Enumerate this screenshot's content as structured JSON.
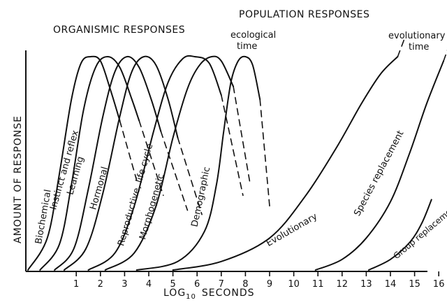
{
  "chart_data": {
    "type": "line",
    "xlabel": "LOG",
    "xlabel_sub": "10",
    "xlabel_tail": "SECONDS",
    "ylabel": "AMOUNT OF RESPONSE",
    "xlim": [
      -1,
      17
    ],
    "ylim": [
      0,
      1
    ],
    "tick_labels": [
      "1",
      "2",
      "3",
      "4",
      "5",
      "6",
      "7",
      "8",
      "9",
      "10",
      "11",
      "12",
      "13",
      "14",
      "15",
      "16"
    ],
    "tick_values": [
      1,
      2,
      3,
      4,
      5,
      6,
      7,
      8,
      9,
      10,
      11,
      12,
      13,
      14,
      15,
      16
    ],
    "grid": false,
    "header_labels": {
      "organismic": "ORGANISMIC RESPONSES",
      "population": "POPULATION RESPONSES"
    },
    "annotations": {
      "ecological_line1": "ecological",
      "ecological_line2": "time",
      "evolutionary_line1": "evolutionary",
      "evolutionary_line2": "time"
    },
    "series": [
      {
        "name": "Biochemical",
        "x": [
          -1.0,
          -0.2,
          0.3,
          0.8,
          1.2,
          1.6,
          2.0,
          2.4,
          2.8
        ],
        "y": [
          0,
          0.15,
          0.45,
          0.8,
          0.97,
          1.0,
          0.98,
          0.85,
          0.7
        ],
        "dashed_x": [
          2.8,
          3.5
        ],
        "dashed_y": [
          0.7,
          0.42
        ]
      },
      {
        "name": "Instinct and reflex",
        "x": [
          -0.5,
          0.3,
          0.8,
          1.3,
          1.8,
          2.3,
          2.8,
          3.3,
          3.6
        ],
        "y": [
          0,
          0.12,
          0.4,
          0.75,
          0.95,
          1.0,
          0.95,
          0.8,
          0.7
        ],
        "dashed_x": [
          3.6,
          4.6
        ],
        "dashed_y": [
          0.7,
          0.35
        ]
      },
      {
        "name": "Learning",
        "x": [
          0.1,
          0.9,
          1.5,
          2.1,
          2.6,
          3.1,
          3.6,
          4.1,
          4.5
        ],
        "y": [
          0,
          0.1,
          0.38,
          0.72,
          0.93,
          1.0,
          0.95,
          0.8,
          0.65
        ],
        "dashed_x": [
          4.5,
          5.6
        ],
        "dashed_y": [
          0.65,
          0.28
        ]
      },
      {
        "name": "Hormonal",
        "x": [
          0.5,
          1.4,
          2.1,
          2.8,
          3.3,
          3.8,
          4.3,
          4.8,
          5.2
        ],
        "y": [
          0,
          0.1,
          0.36,
          0.72,
          0.93,
          1.0,
          0.96,
          0.8,
          0.62
        ],
        "dashed_x": [
          5.2,
          6.2
        ],
        "dashed_y": [
          0.62,
          0.26
        ]
      },
      {
        "name": "Reproductive, life cycle",
        "x": [
          1.5,
          2.6,
          3.4,
          4.2,
          4.8,
          5.4,
          5.9,
          6.5,
          7.0
        ],
        "y": [
          0,
          0.08,
          0.3,
          0.65,
          0.88,
          0.99,
          1.0,
          0.97,
          0.82
        ],
        "dashed_x": [
          7.0,
          7.9
        ],
        "dashed_y": [
          0.82,
          0.35
        ]
      },
      {
        "name": "Morphogenetic",
        "x": [
          2.2,
          3.4,
          4.3,
          5.0,
          5.6,
          6.1,
          6.6,
          7.0,
          7.5
        ],
        "y": [
          0,
          0.08,
          0.3,
          0.62,
          0.85,
          0.96,
          1.0,
          0.98,
          0.86
        ],
        "dashed_x": [
          7.5,
          8.2
        ],
        "dashed_y": [
          0.86,
          0.4
        ]
      },
      {
        "name": "Demographic",
        "x": [
          3.5,
          5.2,
          6.3,
          6.8,
          7.1,
          7.4,
          7.7,
          8.0,
          8.3,
          8.6
        ],
        "y": [
          0,
          0.04,
          0.18,
          0.4,
          0.65,
          0.88,
          0.98,
          1.0,
          0.96,
          0.8
        ],
        "dashed_x": [
          8.6,
          9.0
        ],
        "dashed_y": [
          0.8,
          0.3
        ]
      },
      {
        "name": "Evolutionary",
        "x": [
          5.0,
          7.0,
          9.0,
          10.5,
          11.8,
          12.8,
          13.6,
          14.3
        ],
        "y": [
          0,
          0.04,
          0.15,
          0.35,
          0.58,
          0.78,
          0.92,
          1.0
        ],
        "dashed_x": [
          14.3,
          14.6
        ],
        "dashed_y": [
          1.0,
          1.09
        ]
      },
      {
        "name": "Species replacement",
        "x": [
          10.9,
          12.0,
          13.0,
          14.0,
          14.8,
          15.5,
          16.2
        ],
        "y": [
          0,
          0.05,
          0.15,
          0.32,
          0.55,
          0.78,
          0.98
        ],
        "dashed_x": [
          16.2,
          16.55
        ],
        "dashed_y": [
          0.98,
          1.09
        ]
      },
      {
        "name": "Group replacement",
        "x": [
          13.1,
          14.0,
          14.8,
          15.3,
          15.7
        ],
        "y": [
          0,
          0.05,
          0.13,
          0.22,
          0.33
        ],
        "dashed_x": [],
        "dashed_y": []
      }
    ]
  }
}
